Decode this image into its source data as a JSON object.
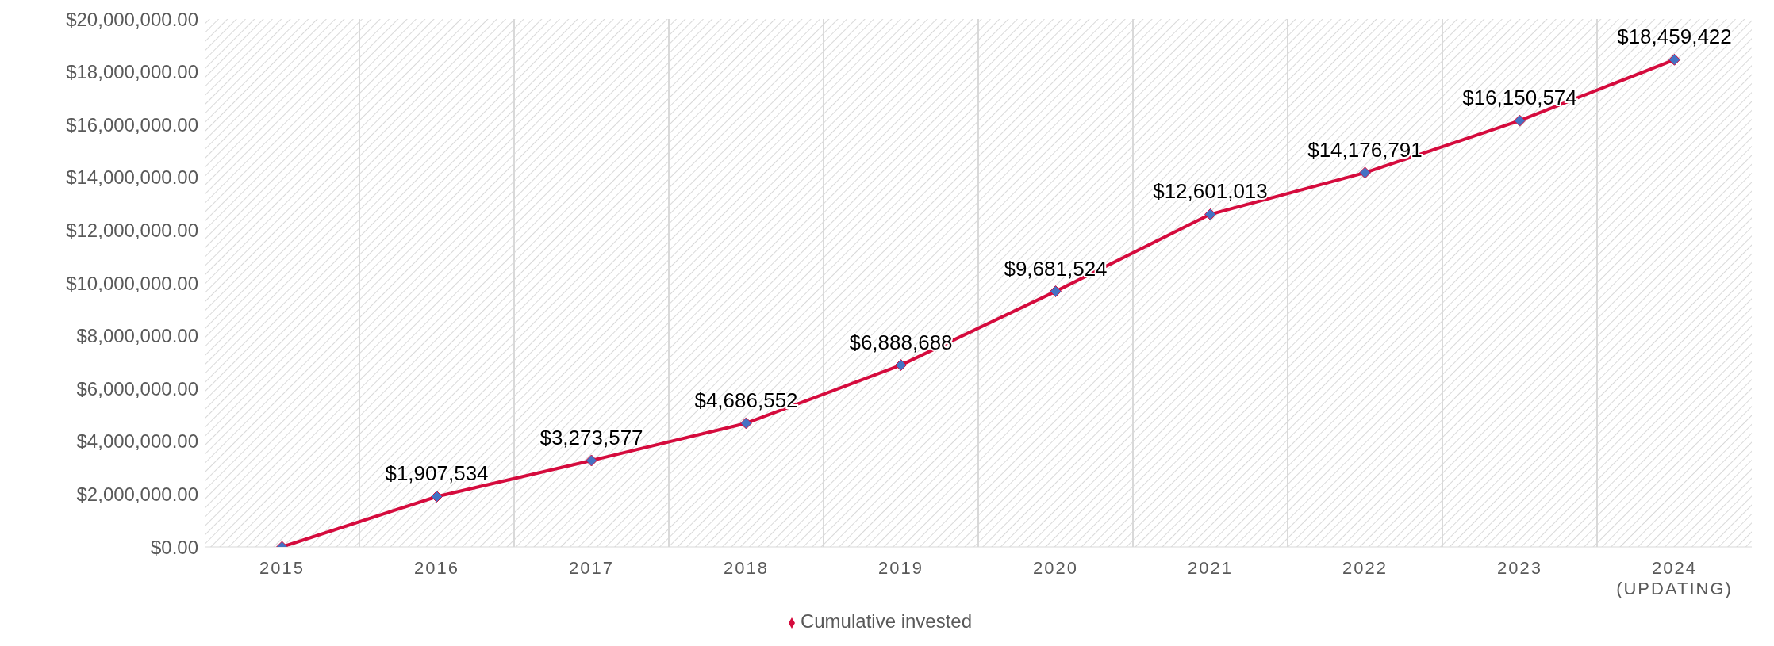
{
  "chart_data": {
    "type": "line",
    "categories": [
      "2015",
      "2016",
      "2017",
      "2018",
      "2019",
      "2020",
      "2021",
      "2022",
      "2023",
      "2024 (UPDATING)"
    ],
    "series": [
      {
        "name": "Cumulative invested",
        "color": "#d50b3d",
        "values": [
          0,
          1907534,
          3273577,
          4686552,
          6888688,
          9681524,
          12601013,
          14176791,
          16150574,
          18459422
        ],
        "value_labels": [
          null,
          "$1,907,534",
          "$3,273,577",
          "$4,686,552",
          "$6,888,688",
          "$9,681,524",
          "$12,601,013",
          "$14,176,791",
          "$16,150,574",
          "$18,459,422"
        ]
      }
    ],
    "ylim": [
      0,
      20000000
    ],
    "yticks": [
      {
        "value": 0,
        "label": "$0.00"
      },
      {
        "value": 2000000,
        "label": "$2,000,000.00"
      },
      {
        "value": 4000000,
        "label": "$4,000,000.00"
      },
      {
        "value": 6000000,
        "label": "$6,000,000.00"
      },
      {
        "value": 8000000,
        "label": "$8,000,000.00"
      },
      {
        "value": 10000000,
        "label": "$10,000,000.00"
      },
      {
        "value": 12000000,
        "label": "$12,000,000.00"
      },
      {
        "value": 14000000,
        "label": "$14,000,000.00"
      },
      {
        "value": 16000000,
        "label": "$16,000,000.00"
      },
      {
        "value": 18000000,
        "label": "$18,000,000.00"
      },
      {
        "value": 20000000,
        "label": "$20,000,000.00"
      }
    ],
    "grid": "x",
    "legend": "bottom",
    "marker": "diamond",
    "line_style": "solid"
  }
}
